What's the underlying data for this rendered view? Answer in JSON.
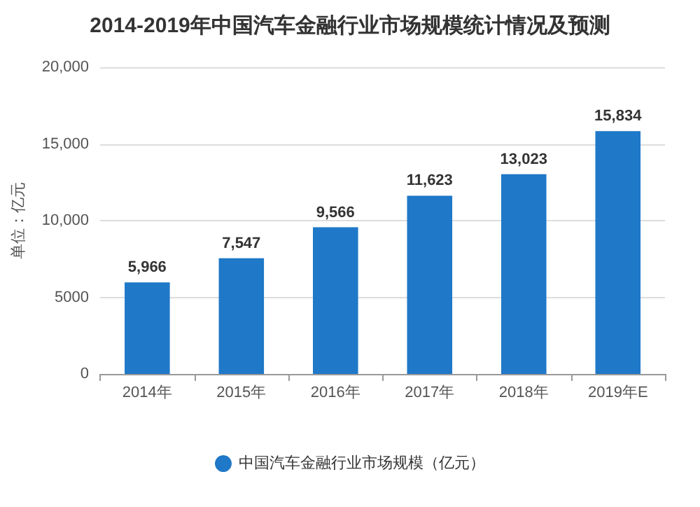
{
  "chart_data": {
    "type": "bar",
    "title": "2014-2019年中国汽车金融行业市场规模统计情况及预测",
    "ylabel": "单位：亿元",
    "categories": [
      "2014年",
      "2015年",
      "2016年",
      "2017年",
      "2018年",
      "2019年E"
    ],
    "series": [
      {
        "name": "中国汽车金融行业市场规模（亿元）",
        "color": "#1f78c8",
        "values": [
          5966,
          7547,
          9566,
          11623,
          13023,
          15834
        ]
      }
    ],
    "value_labels": [
      [
        "5,966",
        "7,547",
        "9,566",
        "11,623",
        "13,023",
        "15,834"
      ]
    ],
    "ylim": [
      0,
      20000
    ],
    "yticks": [
      0,
      5000,
      {
        "value": 10000,
        "label": "10,000"
      },
      {
        "value": 15000,
        "label": "15,000"
      },
      {
        "value": 20000,
        "label": "20,000"
      }
    ],
    "grid": "y",
    "legend": "bottom"
  }
}
